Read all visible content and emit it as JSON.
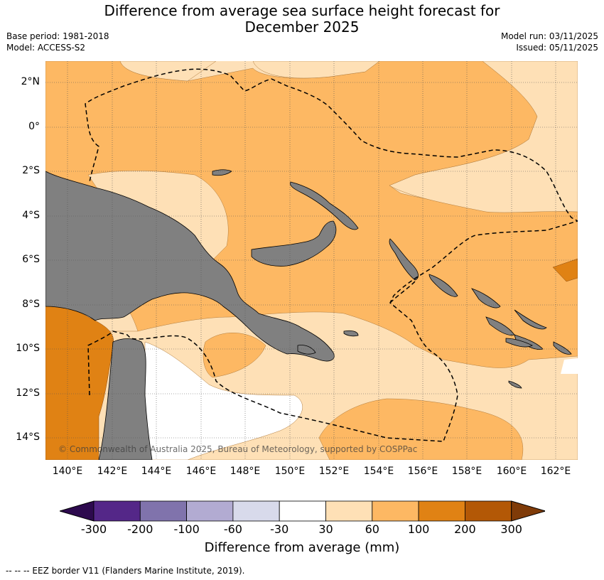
{
  "title_line1": "Difference from average sea surface height forecast for",
  "title_line2": "December 2025",
  "base_period": "Base period: 1981-2018",
  "model": "Model: ACCESS-S2",
  "model_run": "Model run: 03/11/2025",
  "issued": "Issued: 05/11/2025",
  "copyright": "© Commonwealth of Australia 2025, Bureau of Meteorology, supported by COSPPac",
  "lat_labels": [
    "2°N",
    "0°",
    "2°S",
    "4°S",
    "6°S",
    "8°S",
    "10°S",
    "12°S",
    "14°S"
  ],
  "lon_labels": [
    "140°E",
    "142°E",
    "144°E",
    "146°E",
    "148°E",
    "150°E",
    "152°E",
    "154°E",
    "156°E",
    "158°E",
    "160°E",
    "162°E"
  ],
  "colorbar": {
    "title": "Difference from average (mm)",
    "ticks": [
      "-300",
      "-200",
      "-100",
      "-60",
      "-30",
      "30",
      "60",
      "100",
      "200",
      "300"
    ],
    "colors": [
      "#2d0a4e",
      "#542788",
      "#8073ac",
      "#b2abd2",
      "#d8daeb",
      "#ffffff",
      "#fee0b6",
      "#fdb863",
      "#e08214",
      "#b35806",
      "#7f3b08"
    ]
  },
  "legend_note": "--  --  -- EEZ border V11 (Flanders Marine Institute, 2019)."
}
